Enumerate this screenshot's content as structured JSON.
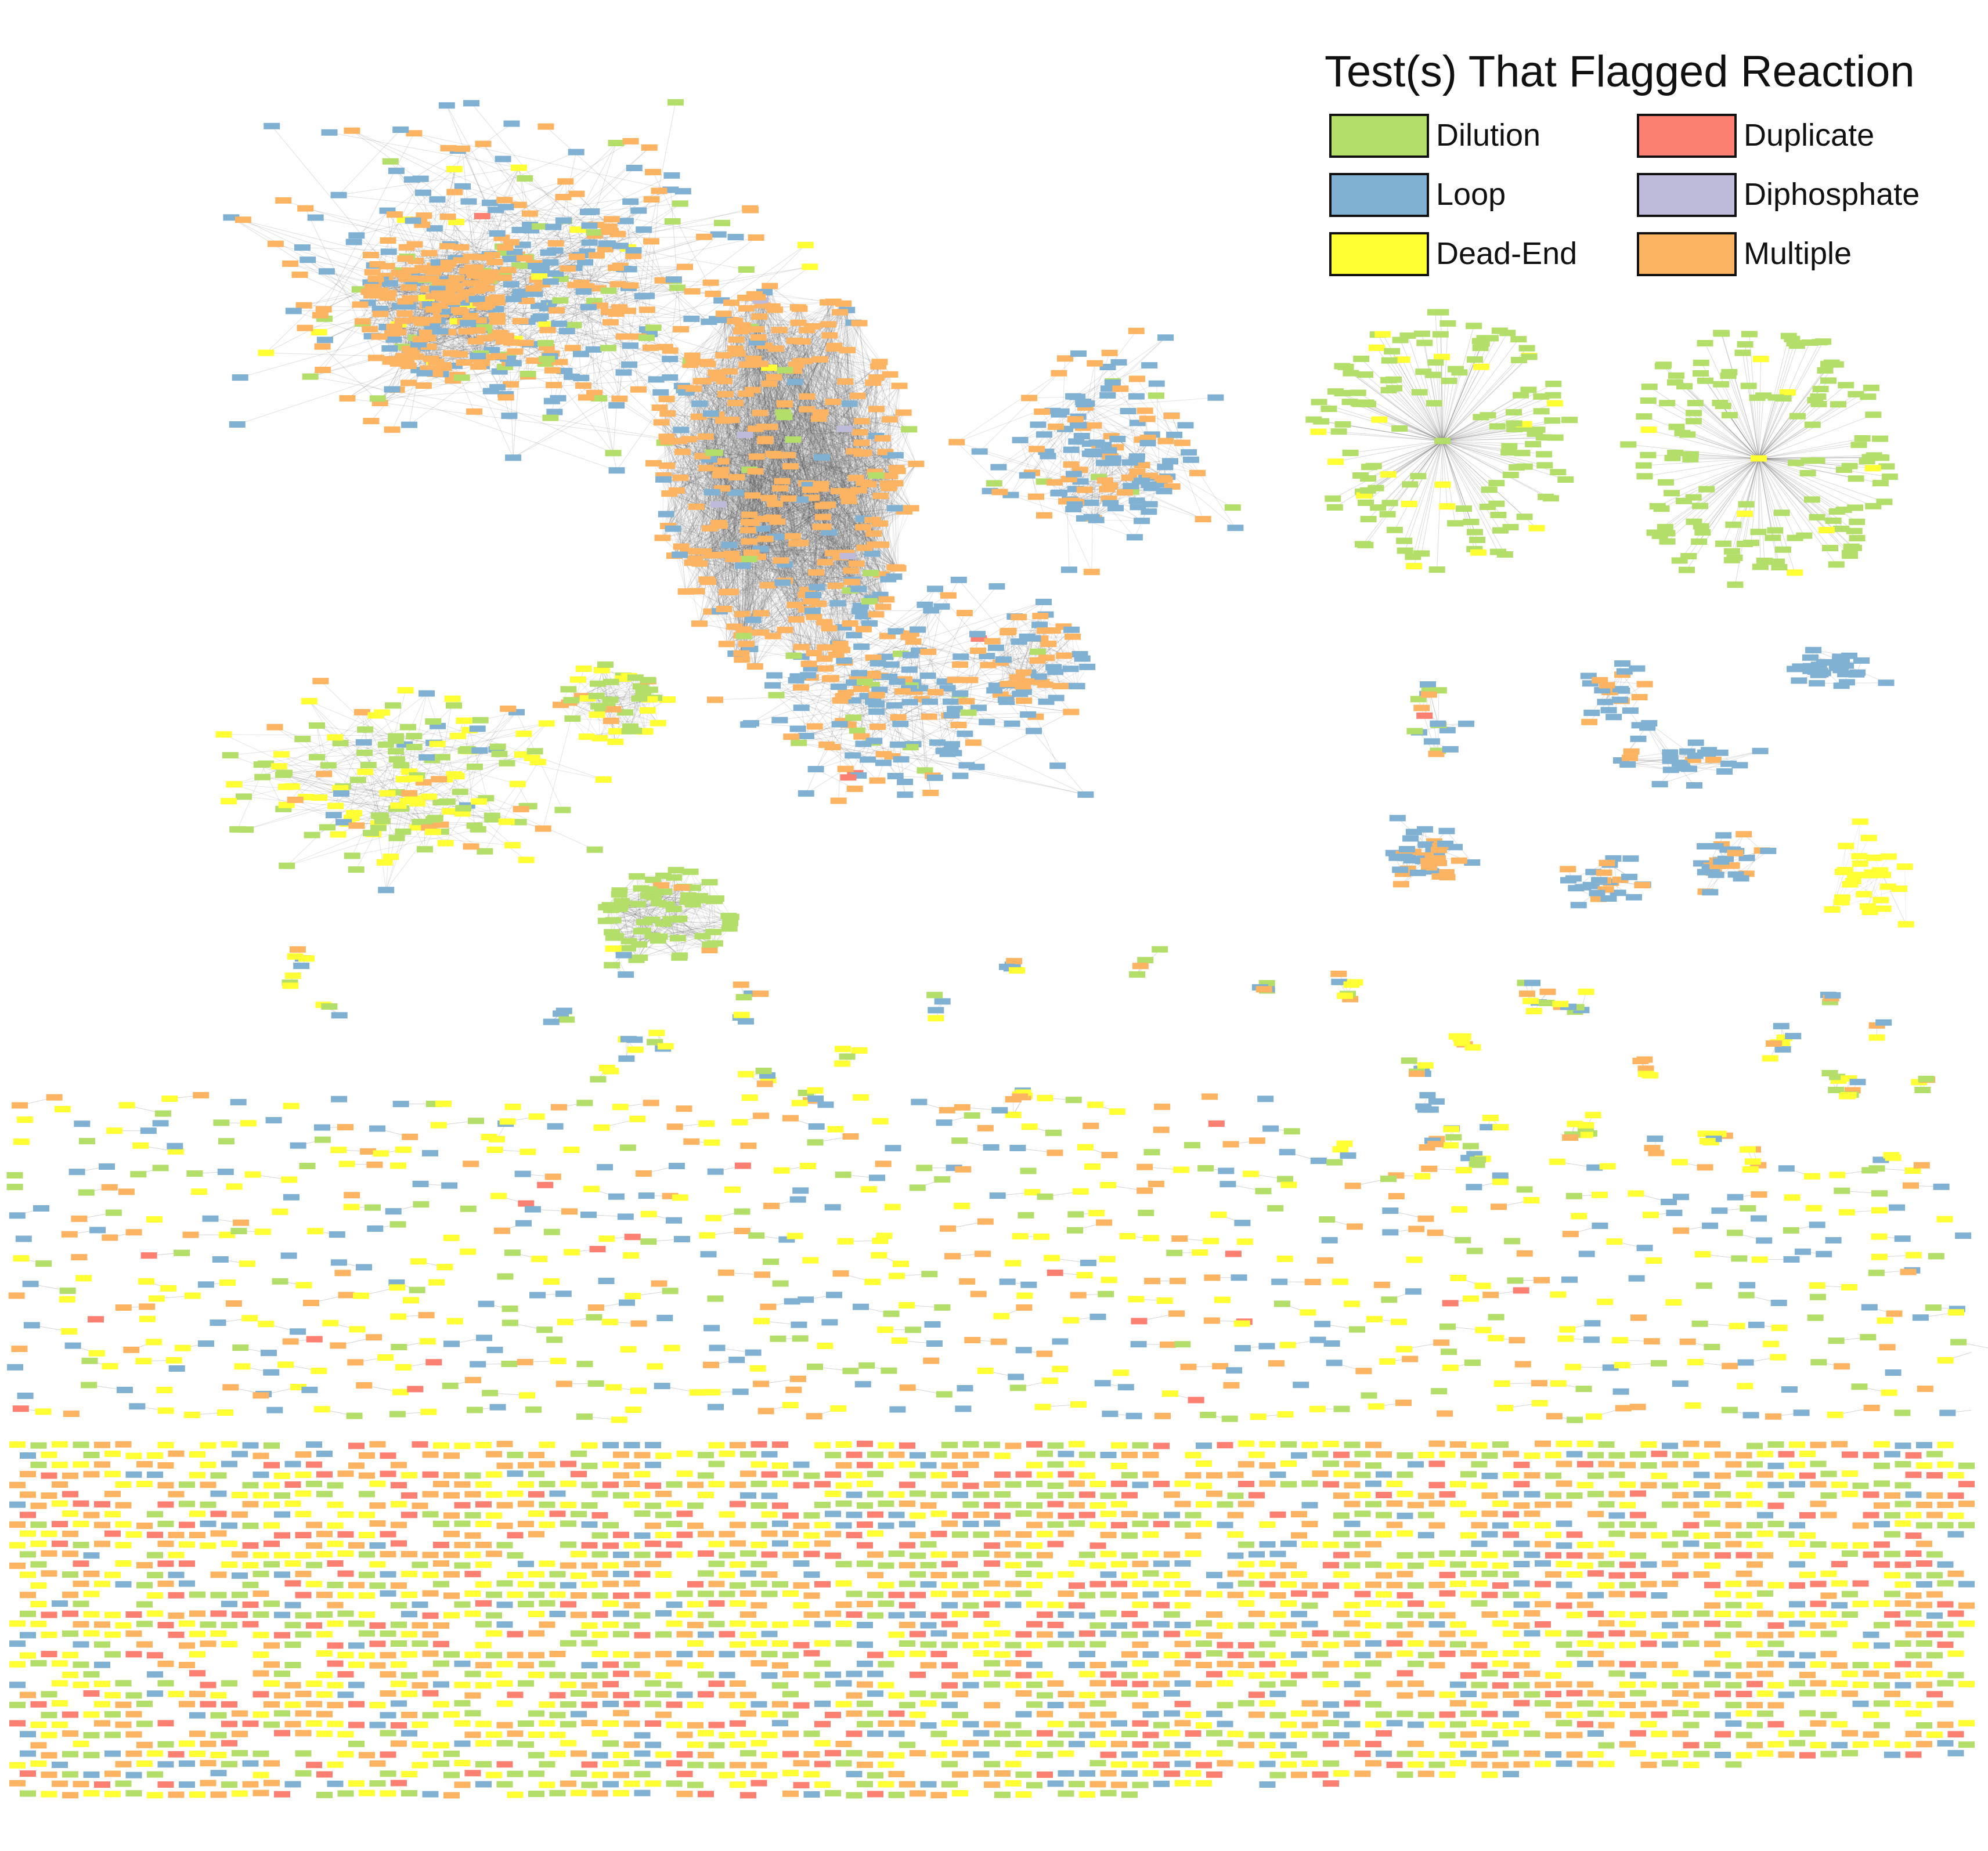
{
  "legend": {
    "title": "Test(s) That Flagged Reaction",
    "items": [
      {
        "key": "dilution",
        "label": "Dilution",
        "color": "#B3DE69"
      },
      {
        "key": "duplicate",
        "label": "Duplicate",
        "color": "#FB8072"
      },
      {
        "key": "loop",
        "label": "Loop",
        "color": "#80B1D3"
      },
      {
        "key": "diphosphate",
        "label": "Diphosphate",
        "color": "#BEBADA"
      },
      {
        "key": "dead-end",
        "label": "Dead-End",
        "color": "#FFFF33"
      },
      {
        "key": "multiple",
        "label": "Multiple",
        "color": "#FDB462"
      }
    ]
  },
  "edge_color": "#555555"
}
